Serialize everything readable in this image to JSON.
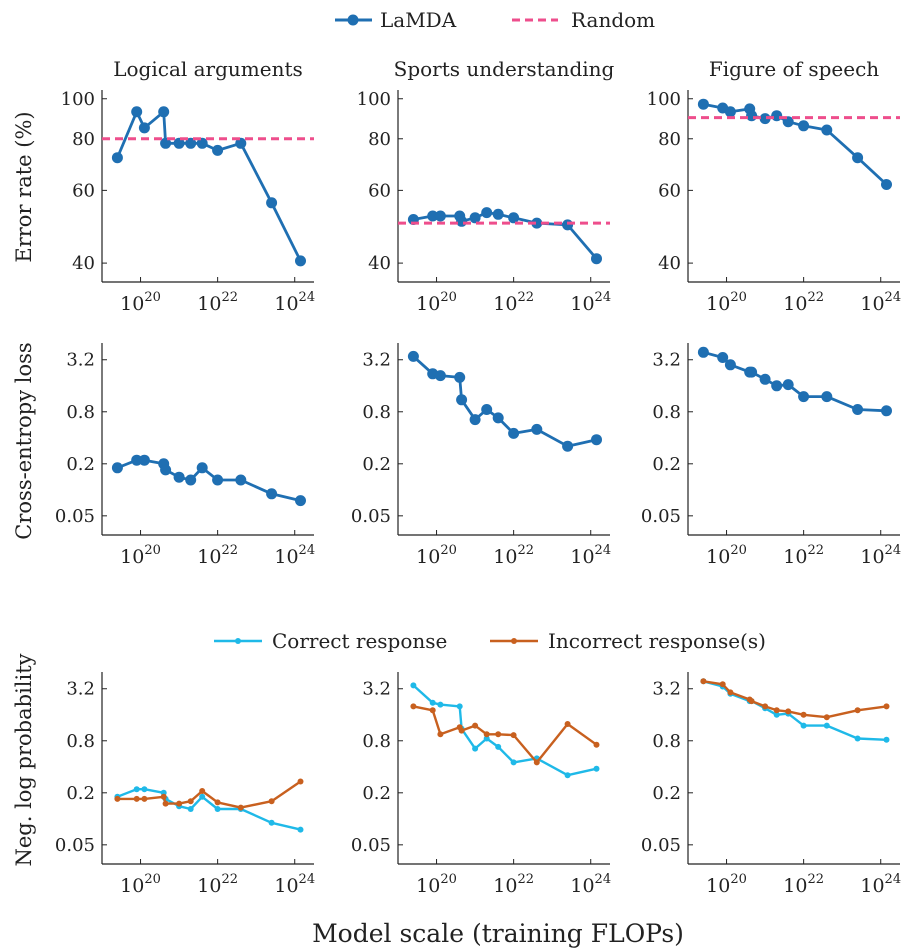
{
  "legend_top": {
    "lamda": "LaMDA",
    "random": "Random"
  },
  "legend_bottom": {
    "correct": "Correct response",
    "incorrect": "Incorrect response(s)"
  },
  "xlabel": "Model scale (training FLOPs)",
  "row_labels": [
    "Error rate (%)",
    "Cross-entropy loss",
    "Neg. log probability"
  ],
  "colors": {
    "lamda": "#1f6fb2",
    "random": "#ee4e8c",
    "correct": "#1fb9e8",
    "incorrect": "#c8601f"
  },
  "chart_data": [
    {
      "type": "line",
      "row": 0,
      "col": 0,
      "title": "Logical arguments",
      "yscale": "log",
      "ylim": [
        36,
        105
      ],
      "yticks": [
        40,
        60,
        80,
        100
      ],
      "xscale": "log",
      "xticks": [
        "10^20",
        "10^22",
        "10^24"
      ],
      "series": [
        {
          "name": "LaMDA",
          "x": [
            19.4,
            19.9,
            20.1,
            20.6,
            20.65,
            21.0,
            21.3,
            21.6,
            22.0,
            22.6,
            23.4,
            24.15
          ],
          "y": [
            72,
            93,
            85,
            93,
            78,
            78,
            78,
            78,
            75,
            78,
            56,
            40.5
          ]
        },
        {
          "name": "Random",
          "const": 80
        }
      ]
    },
    {
      "type": "line",
      "row": 0,
      "col": 1,
      "title": "Sports understanding",
      "yscale": "log",
      "ylim": [
        36,
        105
      ],
      "yticks": [
        40,
        60,
        80,
        100
      ],
      "xscale": "log",
      "xticks": [
        "10^20",
        "10^22",
        "10^24"
      ],
      "series": [
        {
          "name": "LaMDA",
          "x": [
            19.4,
            19.9,
            20.1,
            20.6,
            20.65,
            21.0,
            21.3,
            21.6,
            22.0,
            22.6,
            23.4,
            24.15
          ],
          "y": [
            51,
            52,
            52,
            52,
            50.5,
            51.5,
            53,
            52.5,
            51.5,
            50,
            49.5,
            41
          ]
        },
        {
          "name": "Random",
          "const": 50
        }
      ]
    },
    {
      "type": "line",
      "row": 0,
      "col": 2,
      "title": "Figure of speech",
      "yscale": "log",
      "ylim": [
        36,
        105
      ],
      "yticks": [
        40,
        60,
        80,
        100
      ],
      "xscale": "log",
      "xticks": [
        "10^20",
        "10^22",
        "10^24"
      ],
      "series": [
        {
          "name": "LaMDA",
          "x": [
            19.4,
            19.9,
            20.1,
            20.6,
            20.65,
            21.0,
            21.3,
            21.6,
            22.0,
            22.6,
            23.4,
            24.15
          ],
          "y": [
            97,
            95,
            93,
            94.5,
            91,
            89.5,
            91,
            88,
            86,
            84,
            72,
            62
          ]
        },
        {
          "name": "Random",
          "const": 90
        }
      ]
    },
    {
      "type": "line",
      "row": 1,
      "col": 0,
      "title": "",
      "yscale": "log",
      "ylim": [
        0.03,
        5
      ],
      "yticks": [
        0.05,
        0.2,
        0.8,
        3.2
      ],
      "xscale": "log",
      "xticks": [
        "10^20",
        "10^22",
        "10^24"
      ],
      "series": [
        {
          "name": "LaMDA",
          "x": [
            19.4,
            19.9,
            20.1,
            20.6,
            20.65,
            21.0,
            21.3,
            21.6,
            22.0,
            22.6,
            23.4,
            24.15
          ],
          "y": [
            0.18,
            0.22,
            0.22,
            0.2,
            0.17,
            0.14,
            0.13,
            0.18,
            0.13,
            0.13,
            0.09,
            0.075
          ]
        }
      ]
    },
    {
      "type": "line",
      "row": 1,
      "col": 1,
      "title": "",
      "yscale": "log",
      "ylim": [
        0.03,
        5
      ],
      "yticks": [
        0.05,
        0.2,
        0.8,
        3.2
      ],
      "xscale": "log",
      "xticks": [
        "10^20",
        "10^22",
        "10^24"
      ],
      "series": [
        {
          "name": "LaMDA",
          "x": [
            19.4,
            19.9,
            20.1,
            20.6,
            20.65,
            21.0,
            21.3,
            21.6,
            22.0,
            22.6,
            23.4,
            24.15
          ],
          "y": [
            3.5,
            2.2,
            2.1,
            2.0,
            1.1,
            0.65,
            0.85,
            0.68,
            0.45,
            0.5,
            0.32,
            0.38
          ]
        }
      ]
    },
    {
      "type": "line",
      "row": 1,
      "col": 2,
      "title": "",
      "yscale": "log",
      "ylim": [
        0.03,
        5
      ],
      "yticks": [
        0.05,
        0.2,
        0.8,
        3.2
      ],
      "xscale": "log",
      "xticks": [
        "10^20",
        "10^22",
        "10^24"
      ],
      "series": [
        {
          "name": "LaMDA",
          "x": [
            19.4,
            19.9,
            20.1,
            20.6,
            20.65,
            21.0,
            21.3,
            21.6,
            22.0,
            22.6,
            23.4,
            24.15
          ],
          "y": [
            3.9,
            3.4,
            2.8,
            2.3,
            2.3,
            1.9,
            1.6,
            1.65,
            1.2,
            1.2,
            0.85,
            0.82
          ]
        }
      ]
    },
    {
      "type": "line",
      "row": 2,
      "col": 0,
      "title": "",
      "yscale": "log",
      "ylim": [
        0.03,
        5
      ],
      "yticks": [
        0.05,
        0.2,
        0.8,
        3.2
      ],
      "xscale": "log",
      "xticks": [
        "10^20",
        "10^22",
        "10^24"
      ],
      "series": [
        {
          "name": "Correct response",
          "x": [
            19.4,
            19.9,
            20.1,
            20.6,
            20.65,
            21.0,
            21.3,
            21.6,
            22.0,
            22.6,
            23.4,
            24.15
          ],
          "y": [
            0.18,
            0.22,
            0.22,
            0.2,
            0.17,
            0.14,
            0.13,
            0.18,
            0.13,
            0.13,
            0.09,
            0.075
          ]
        },
        {
          "name": "Incorrect response(s)",
          "x": [
            19.4,
            19.9,
            20.1,
            20.6,
            20.65,
            21.0,
            21.3,
            21.6,
            22.0,
            22.6,
            23.4,
            24.15
          ],
          "y": [
            0.17,
            0.17,
            0.17,
            0.18,
            0.15,
            0.15,
            0.16,
            0.21,
            0.155,
            0.135,
            0.16,
            0.27
          ]
        }
      ]
    },
    {
      "type": "line",
      "row": 2,
      "col": 1,
      "title": "",
      "yscale": "log",
      "ylim": [
        0.03,
        5
      ],
      "yticks": [
        0.05,
        0.2,
        0.8,
        3.2
      ],
      "xscale": "log",
      "xticks": [
        "10^20",
        "10^22",
        "10^24"
      ],
      "series": [
        {
          "name": "Correct response",
          "x": [
            19.4,
            19.9,
            20.1,
            20.6,
            20.65,
            21.0,
            21.3,
            21.6,
            22.0,
            22.6,
            23.4,
            24.15
          ],
          "y": [
            3.5,
            2.2,
            2.1,
            2.0,
            1.1,
            0.65,
            0.85,
            0.68,
            0.45,
            0.5,
            0.32,
            0.38
          ]
        },
        {
          "name": "Incorrect response(s)",
          "x": [
            19.4,
            19.9,
            20.1,
            20.6,
            20.65,
            21.0,
            21.3,
            21.6,
            22.0,
            22.6,
            23.4,
            24.15
          ],
          "y": [
            2.0,
            1.8,
            0.95,
            1.15,
            1.05,
            1.2,
            0.95,
            0.95,
            0.93,
            0.45,
            1.25,
            0.72
          ]
        }
      ]
    },
    {
      "type": "line",
      "row": 2,
      "col": 2,
      "title": "",
      "yscale": "log",
      "ylim": [
        0.03,
        5
      ],
      "yticks": [
        0.05,
        0.2,
        0.8,
        3.2
      ],
      "xscale": "log",
      "xticks": [
        "10^20",
        "10^22",
        "10^24"
      ],
      "series": [
        {
          "name": "Correct response",
          "x": [
            19.4,
            19.9,
            20.1,
            20.6,
            20.65,
            21.0,
            21.3,
            21.6,
            22.0,
            22.6,
            23.4,
            24.15
          ],
          "y": [
            3.9,
            3.4,
            2.8,
            2.3,
            2.3,
            1.9,
            1.6,
            1.65,
            1.2,
            1.2,
            0.85,
            0.82
          ]
        },
        {
          "name": "Incorrect response(s)",
          "x": [
            19.4,
            19.9,
            20.1,
            20.6,
            20.65,
            21.0,
            21.3,
            21.6,
            22.0,
            22.6,
            23.4,
            24.15
          ],
          "y": [
            3.9,
            3.6,
            2.9,
            2.4,
            2.3,
            2.0,
            1.8,
            1.75,
            1.6,
            1.5,
            1.8,
            2.0
          ]
        }
      ]
    }
  ]
}
